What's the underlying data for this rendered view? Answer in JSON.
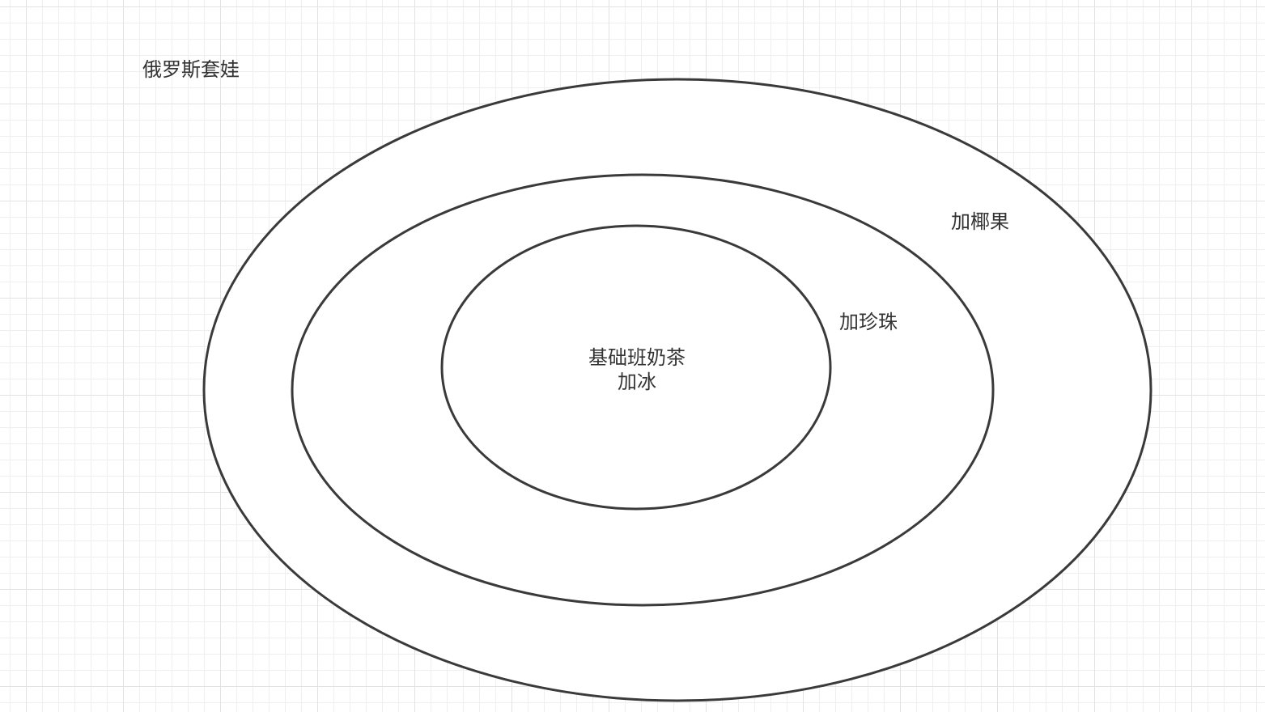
{
  "diagram": {
    "title": "俄罗斯套娃",
    "stroke_color": "#3a3a3a",
    "layers": {
      "outer": {
        "label": "加椰果"
      },
      "middle": {
        "label": "加珍珠"
      },
      "inner": {
        "label_line1": "基础班奶茶",
        "label_line2": "加冰"
      }
    }
  }
}
